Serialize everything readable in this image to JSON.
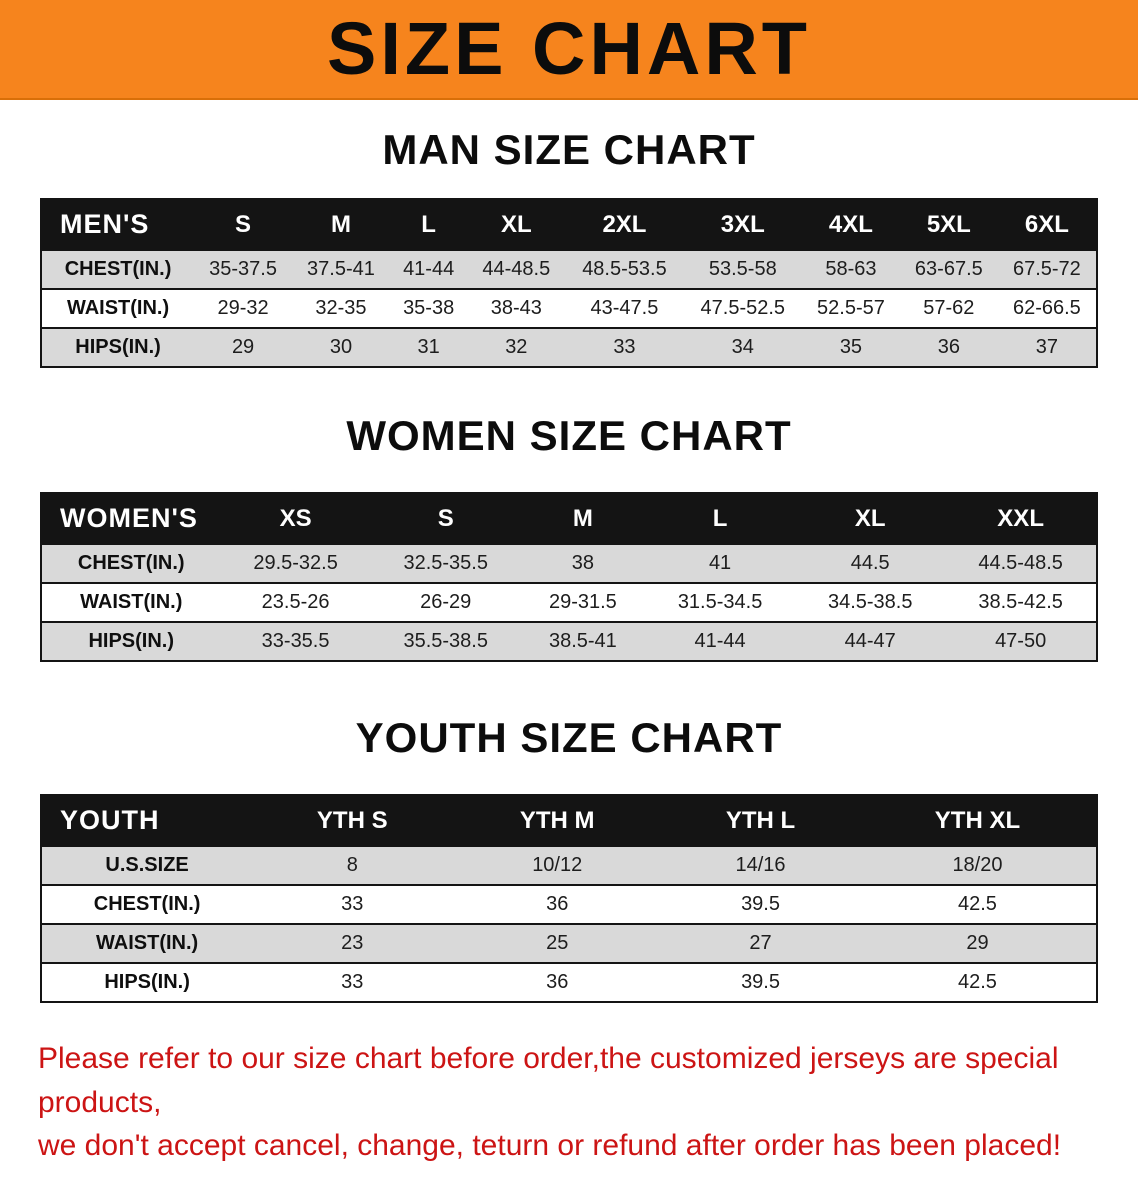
{
  "banner": {
    "title": "SIZE CHART"
  },
  "sections": {
    "men": {
      "heading": "MAN SIZE CHART",
      "table": {
        "header": [
          "MEN'S",
          "S",
          "M",
          "L",
          "XL",
          "2XL",
          "3XL",
          "4XL",
          "5XL",
          "6XL"
        ],
        "rows": [
          [
            "CHEST(IN.)",
            "35-37.5",
            "37.5-41",
            "41-44",
            "44-48.5",
            "48.5-53.5",
            "53.5-58",
            "58-63",
            "63-67.5",
            "67.5-72"
          ],
          [
            "WAIST(IN.)",
            "29-32",
            "32-35",
            "35-38",
            "38-43",
            "43-47.5",
            "47.5-52.5",
            "52.5-57",
            "57-62",
            "62-66.5"
          ],
          [
            "HIPS(IN.)",
            "29",
            "30",
            "31",
            "32",
            "33",
            "34",
            "35",
            "36",
            "37"
          ]
        ]
      }
    },
    "women": {
      "heading": "WOMEN SIZE CHART",
      "table": {
        "header": [
          "WOMEN'S",
          "XS",
          "S",
          "M",
          "L",
          "XL",
          "XXL"
        ],
        "rows": [
          [
            "CHEST(IN.)",
            "29.5-32.5",
            "32.5-35.5",
            "38",
            "41",
            "44.5",
            "44.5-48.5"
          ],
          [
            "WAIST(IN.)",
            "23.5-26",
            "26-29",
            "29-31.5",
            "31.5-34.5",
            "34.5-38.5",
            "38.5-42.5"
          ],
          [
            "HIPS(IN.)",
            "33-35.5",
            "35.5-38.5",
            "38.5-41",
            "41-44",
            "44-47",
            "47-50"
          ]
        ]
      }
    },
    "youth": {
      "heading": "YOUTH SIZE CHART",
      "table": {
        "header": [
          "YOUTH",
          "YTH S",
          "YTH M",
          "YTH L",
          "YTH XL"
        ],
        "rows": [
          [
            "U.S.SIZE",
            "8",
            "10/12",
            "14/16",
            "18/20"
          ],
          [
            "CHEST(IN.)",
            "33",
            "36",
            "39.5",
            "42.5"
          ],
          [
            "WAIST(IN.)",
            "23",
            "25",
            "27",
            "29"
          ],
          [
            "HIPS(IN.)",
            "33",
            "36",
            "39.5",
            "42.5"
          ]
        ]
      }
    }
  },
  "disclaimer": {
    "line1": "Please refer to our size chart before order,the customized jerseys are special products,",
    "line2": "we don't accept cancel, change, teturn or refund after order has been placed!"
  },
  "colors": {
    "banner_orange": "#F6841D",
    "header_black": "#141414",
    "row_gray": "#D9D9D9",
    "disclaimer_red": "#CC1414"
  }
}
